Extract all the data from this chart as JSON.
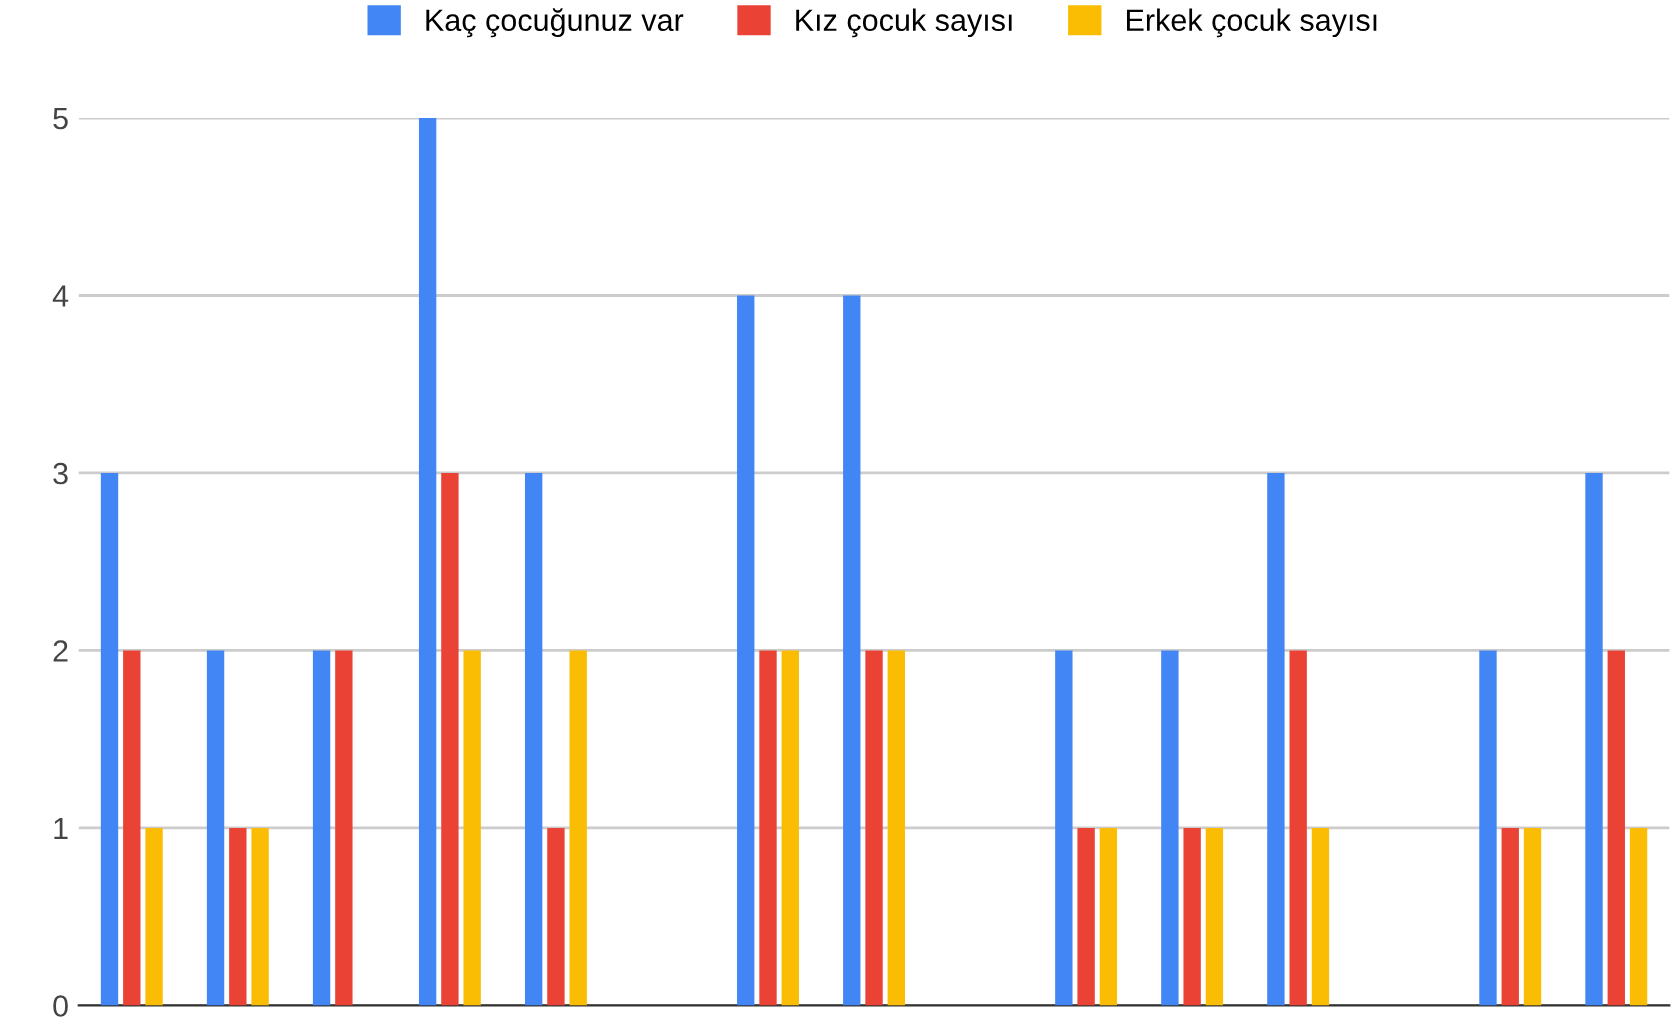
{
  "chart_data": {
    "type": "bar",
    "categories": [
      null,
      null,
      null,
      null,
      null,
      null,
      null,
      null,
      null,
      null,
      null,
      null,
      null,
      null,
      null
    ],
    "series": [
      {
        "name": "Kaç çocuğunuz var",
        "color": "#4285f4",
        "values": [
          3,
          2,
          2,
          5,
          3,
          null,
          4,
          4,
          null,
          2,
          2,
          3,
          null,
          2,
          3
        ]
      },
      {
        "name": "Kız çocuk sayısı",
        "color": "#ea4335",
        "values": [
          2,
          1,
          2,
          3,
          1,
          null,
          2,
          2,
          null,
          1,
          1,
          2,
          null,
          1,
          2
        ]
      },
      {
        "name": "Erkek çocuk sayısı",
        "color": "#fbbc04",
        "values": [
          1,
          1,
          0,
          2,
          2,
          null,
          2,
          2,
          null,
          1,
          1,
          1,
          null,
          1,
          1
        ]
      }
    ],
    "ylim": [
      0,
      5
    ],
    "yticks": [
      0,
      1,
      2,
      3,
      4,
      5
    ],
    "grid": "y",
    "legend": "top",
    "tick_labels": "y"
  }
}
